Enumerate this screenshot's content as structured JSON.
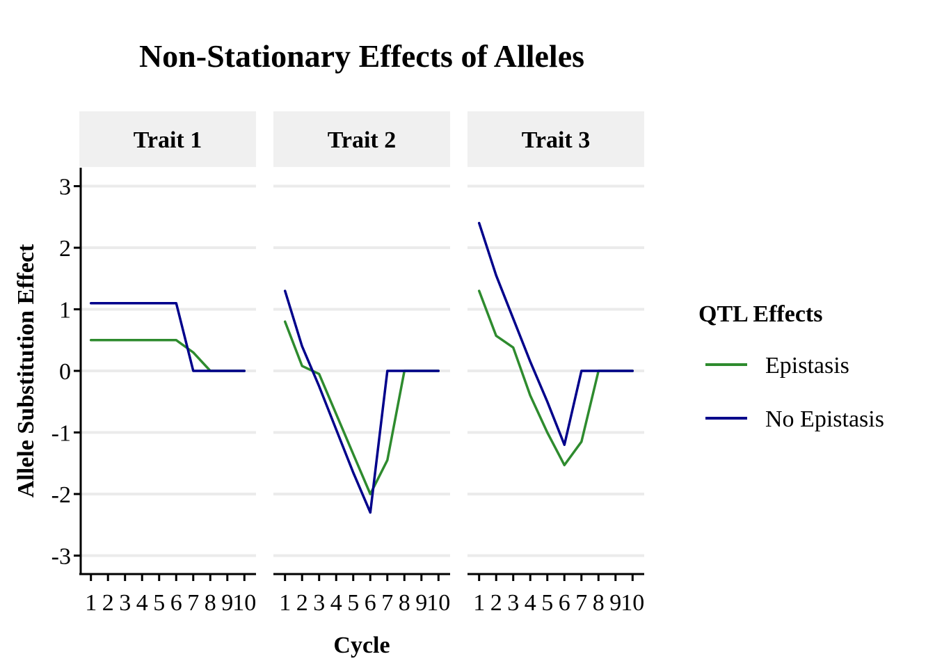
{
  "title": "Non-Stationary Effects of Alleles",
  "colors": {
    "epistasis": "#2e8b2e",
    "no_epistasis": "#00008b",
    "strip": "#f0f0f0",
    "grid": "#ebebeb"
  },
  "chart_data": {
    "type": "line",
    "title": "Non-Stationary Effects of Alleles",
    "xlabel": "Cycle",
    "ylabel": "Allele Substitution Effect",
    "x": [
      1,
      2,
      3,
      4,
      5,
      6,
      7,
      8,
      9,
      10
    ],
    "x_tick_labels": [
      "1",
      "2",
      "3",
      "4",
      "5",
      "6",
      "7",
      "8",
      "9",
      "10"
    ],
    "y_ticks": [
      3,
      2,
      1,
      0,
      -1,
      -2,
      -3
    ],
    "y_tick_labels": [
      "3",
      "2",
      "1",
      "0",
      "-1",
      "-2",
      "-3"
    ],
    "ylim": [
      -3.3,
      3.3
    ],
    "xlim": [
      0.4,
      10.6
    ],
    "grid": "horizontal major gridlines",
    "legend": {
      "title": "QTL Effects",
      "position": "right",
      "entries": [
        "Epistasis",
        "No Epistasis"
      ]
    },
    "panels": [
      {
        "label": "Trait 1",
        "series": [
          {
            "name": "Epistasis",
            "color": "#2e8b2e",
            "values": [
              0.5,
              0.5,
              0.5,
              0.5,
              0.5,
              0.5,
              0.3,
              0.0,
              0.0,
              0.0
            ]
          },
          {
            "name": "No Epistasis",
            "color": "#00008b",
            "values": [
              1.1,
              1.1,
              1.1,
              1.1,
              1.1,
              1.1,
              0.0,
              0.0,
              0.0,
              0.0
            ]
          }
        ]
      },
      {
        "label": "Trait 2",
        "series": [
          {
            "name": "Epistasis",
            "color": "#2e8b2e",
            "values": [
              0.8,
              0.08,
              -0.05,
              -0.7,
              -1.35,
              -2.0,
              -1.45,
              0.0,
              0.0,
              0.0
            ]
          },
          {
            "name": "No Epistasis",
            "color": "#00008b",
            "values": [
              1.3,
              0.4,
              -0.25,
              -0.95,
              -1.65,
              -2.3,
              0.0,
              0.0,
              0.0,
              0.0
            ]
          }
        ]
      },
      {
        "label": "Trait 3",
        "series": [
          {
            "name": "Epistasis",
            "color": "#2e8b2e",
            "values": [
              1.3,
              0.57,
              0.38,
              -0.4,
              -1.0,
              -1.53,
              -1.15,
              0.0,
              0.0,
              0.0
            ]
          },
          {
            "name": "No Epistasis",
            "color": "#00008b",
            "values": [
              2.4,
              1.55,
              0.85,
              0.15,
              -0.5,
              -1.2,
              0.0,
              0.0,
              0.0,
              0.0
            ]
          }
        ]
      }
    ]
  }
}
